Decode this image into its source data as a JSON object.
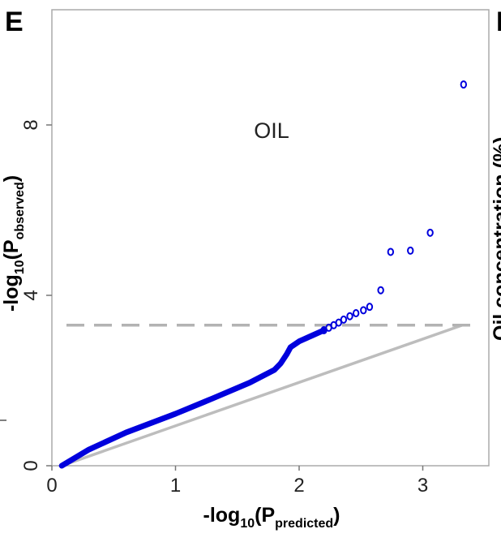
{
  "panel_label": "E",
  "next_panel_label": "F",
  "next_panel_ylabel_fragment": "Oil concentration (%)",
  "chart_data": {
    "type": "scatter",
    "title": "",
    "annotation": "OIL",
    "xlabel": {
      "base": "-log",
      "sub": "10",
      "open": "(P",
      "inner_sub": "predicted",
      "close": ")"
    },
    "ylabel": {
      "base": "-log",
      "sub": "10",
      "open": "(P",
      "inner_sub": "observed",
      "close": ")"
    },
    "xlim": [
      0,
      3.5
    ],
    "ylim": [
      0,
      11.0
    ],
    "xticks": [
      0,
      1,
      2,
      3
    ],
    "xtick_labels": [
      "0",
      "1",
      "2",
      "3"
    ],
    "yticks": [
      0,
      4,
      8
    ],
    "ytick_labels": [
      "0",
      "4",
      "8"
    ],
    "grid": false,
    "colors": {
      "points": "#0000dd",
      "expected_line": "#bdbdbd",
      "threshold_line": "#b3b3b3",
      "frame": "#aaaaaa"
    },
    "expected_line": {
      "x": [
        0.08,
        3.32
      ],
      "y": [
        0.0,
        3.3
      ]
    },
    "threshold": {
      "y": 3.3,
      "style": "dashed"
    },
    "tail_points": {
      "x": [
        2.2,
        2.24,
        2.28,
        2.32,
        2.36,
        2.41,
        2.46,
        2.52,
        2.57,
        2.66,
        2.74,
        2.9,
        3.06,
        3.33
      ],
      "y": [
        3.18,
        3.24,
        3.3,
        3.36,
        3.43,
        3.51,
        3.58,
        3.65,
        3.73,
        4.12,
        5.02,
        5.05,
        5.47,
        8.95
      ]
    },
    "dense_curve": {
      "x": [
        0.08,
        0.3,
        0.6,
        1.0,
        1.3,
        1.6,
        1.8,
        1.85,
        1.9,
        1.93,
        2.0,
        2.1,
        2.2
      ],
      "y": [
        0.0,
        0.38,
        0.78,
        1.22,
        1.58,
        1.95,
        2.25,
        2.4,
        2.62,
        2.78,
        2.92,
        3.05,
        3.18
      ]
    }
  }
}
